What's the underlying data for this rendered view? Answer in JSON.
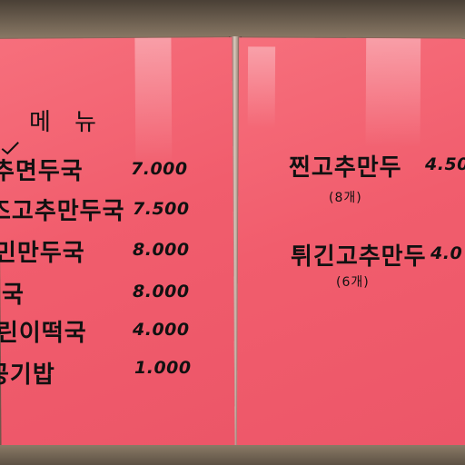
{
  "left_board": {
    "heading": "메 뉴",
    "items": [
      {
        "name": "추면두국",
        "price": "7.000"
      },
      {
        "name": "즈고추만두국",
        "price": "7.500"
      },
      {
        "name": "민만두국",
        "price": "8.000"
      },
      {
        "name": "국",
        "price": "8.000"
      },
      {
        "name": "린이떡국",
        "price": "4.000"
      },
      {
        "name": "공기밥",
        "price": "1.000"
      }
    ]
  },
  "right_board": {
    "items": [
      {
        "name": "찐고추만두",
        "price": "4.50",
        "note": "(8개)"
      },
      {
        "name": "튀긴고추만두",
        "price": "4.0",
        "note": "(6개)"
      }
    ]
  },
  "colors": {
    "paper": "#f15d6d",
    "ink": "#111111",
    "wall": "#6e5f50"
  }
}
